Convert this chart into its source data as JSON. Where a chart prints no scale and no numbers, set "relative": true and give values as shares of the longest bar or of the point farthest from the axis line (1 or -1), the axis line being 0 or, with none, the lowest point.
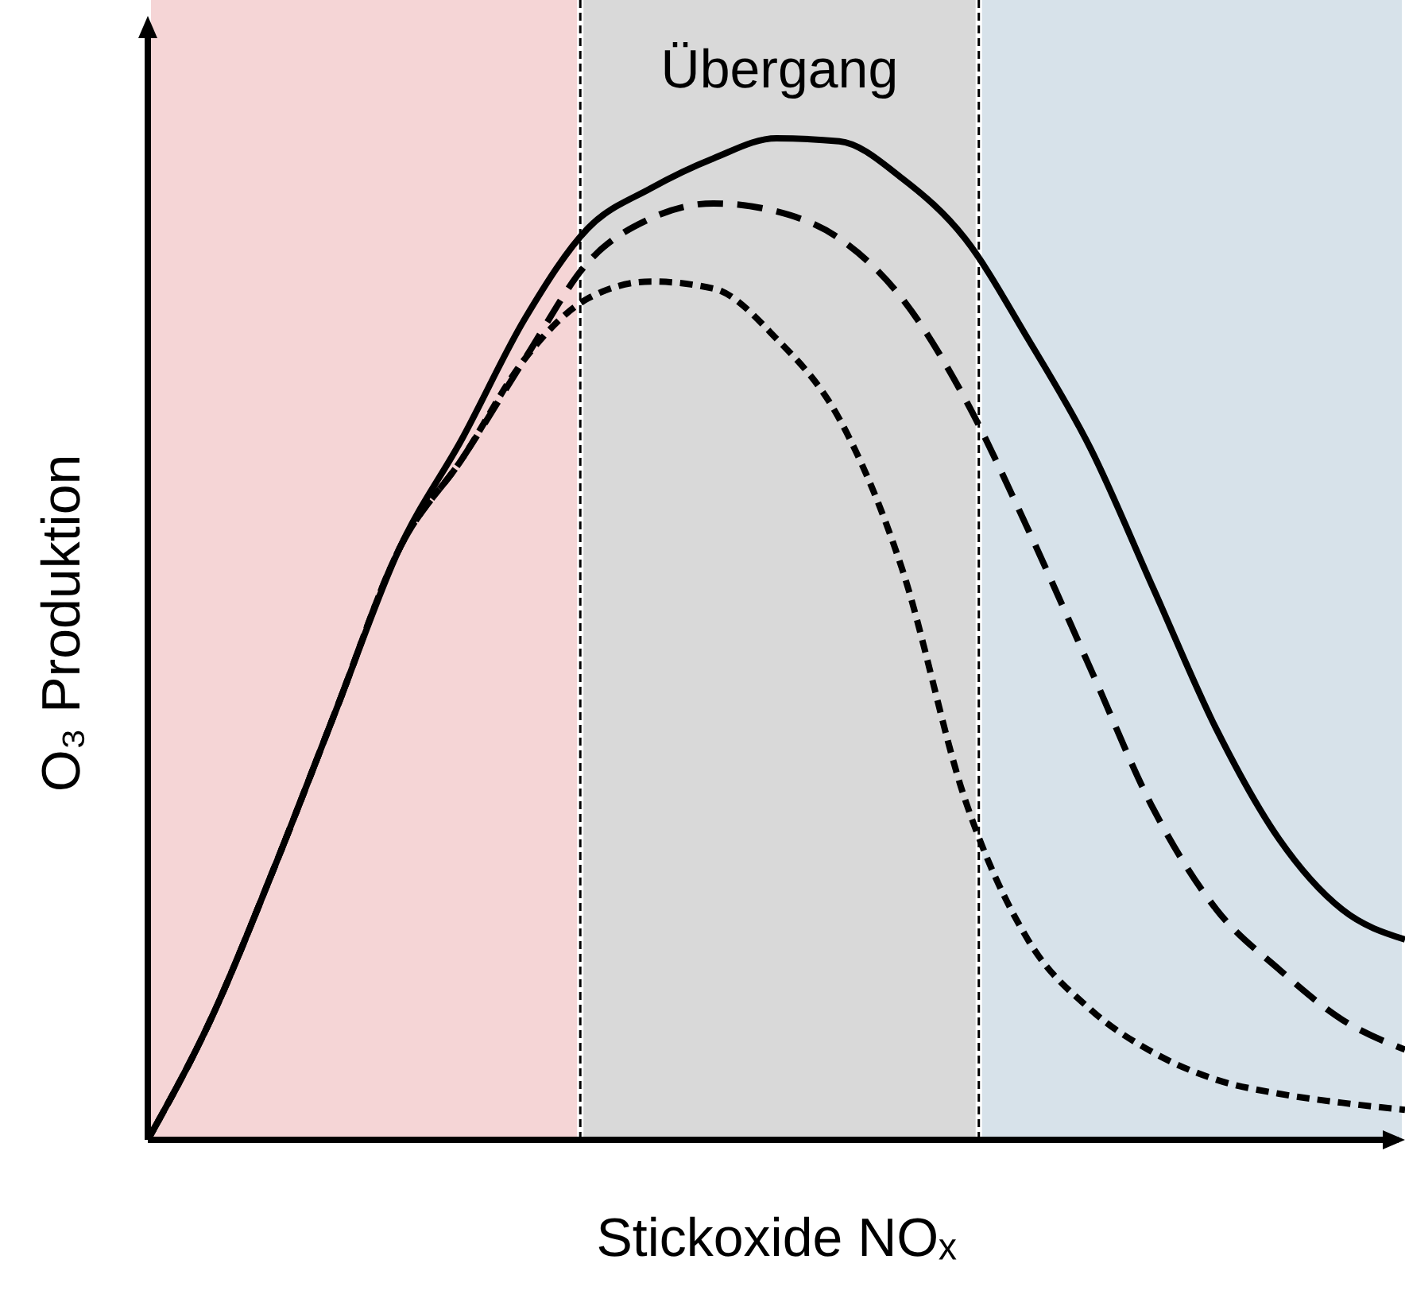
{
  "chart_data": {
    "type": "line",
    "relative": true,
    "xlabel": "Stickoxide NOₓ",
    "ylabel": "O₃ Produktion",
    "annotations": [
      "Übergang"
    ],
    "categories": [
      null,
      null,
      null,
      null,
      null,
      null,
      null,
      null,
      null,
      null,
      null,
      null,
      null,
      null,
      null,
      null,
      null,
      null,
      null,
      null,
      null
    ],
    "series": [
      {
        "color": "#000000",
        "line_style": "solid",
        "values": [
          0,
          0.12,
          0.27,
          0.43,
          0.59,
          0.7,
          0.82,
          0.91,
          0.95,
          0.98,
          1,
          0.997,
          0.96,
          0.9,
          0.8,
          0.69,
          0.55,
          0.41,
          0.3,
          0.23,
          0.2
        ]
      },
      {
        "color": "#000000",
        "line_style": "dashed",
        "values": [
          0,
          0.12,
          0.27,
          0.43,
          0.59,
          0.68,
          0.78,
          0.876,
          0.92,
          0.935,
          0.927,
          0.9,
          0.84,
          0.74,
          0.61,
          0.47,
          0.33,
          0.23,
          0.17,
          0.12,
          0.09
        ]
      },
      {
        "color": "#000000",
        "line_style": "dotted",
        "values": [
          0,
          0.12,
          0.27,
          0.43,
          0.59,
          0.68,
          0.78,
          0.84,
          0.857,
          0.85,
          0.8,
          0.72,
          0.57,
          0.34,
          0.2,
          0.13,
          0.087,
          0.06,
          0.046,
          0.037,
          0.03
        ]
      }
    ]
  }
}
